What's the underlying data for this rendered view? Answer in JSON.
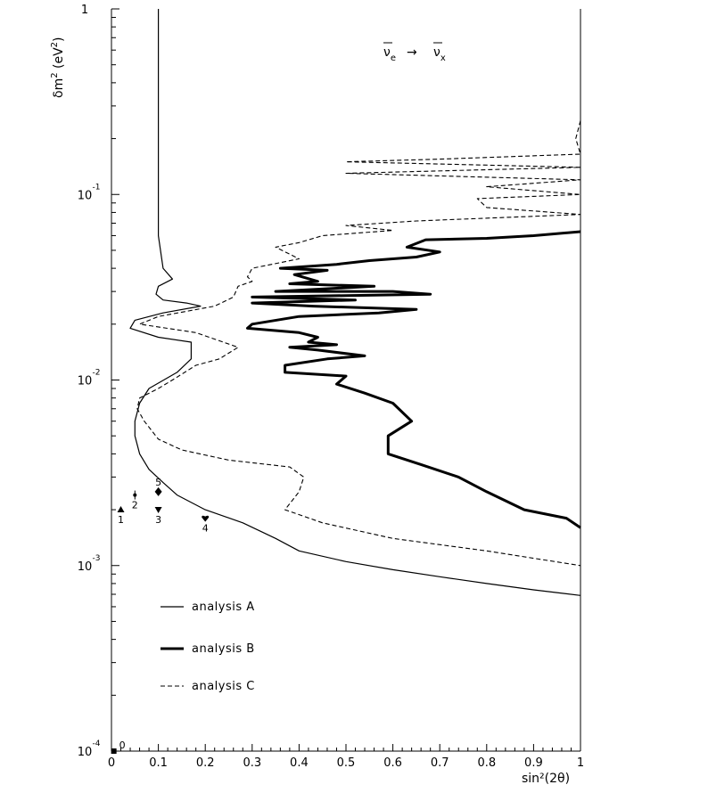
{
  "chart_data": {
    "type": "line",
    "title_annotation": {
      "symbol_left": "ν",
      "subscript_left": "e",
      "arrow": "→",
      "symbol_right": "ν",
      "subscript_right": "x"
    },
    "xlabel": "sin²(2θ)",
    "ylabel_parts": {
      "prefix": "δm",
      "sup1": "2",
      "unit_open": " (eV",
      "sup2": "2",
      "unit_close": ")"
    },
    "xlim": [
      0,
      1
    ],
    "ylim": [
      0.0001,
      1
    ],
    "yscale": "log",
    "grid": false,
    "x_ticks": [
      "0",
      "0.1",
      "0.2",
      "0.3",
      "0.4",
      "0.5",
      "0.6",
      "0.7",
      "0.8",
      "0.9",
      "1"
    ],
    "y_ticks": [
      {
        "base": "10",
        "exp": "-4",
        "value": 0.0001
      },
      {
        "base": "10",
        "exp": "-3",
        "value": 0.001
      },
      {
        "base": "10",
        "exp": "-2",
        "value": 0.01
      },
      {
        "base": "10",
        "exp": "-1",
        "value": 0.1
      },
      {
        "base": "1",
        "exp": "",
        "value": 1
      }
    ],
    "legend": {
      "placement": "lower-left",
      "entries": [
        "analysis A",
        "analysis B",
        "analysis C"
      ]
    },
    "series": [
      {
        "name": "analysis A",
        "style": "thin-solid",
        "points": [
          [
            0.1,
            1.0
          ],
          [
            0.1,
            0.5
          ],
          [
            0.1,
            0.2
          ],
          [
            0.1,
            0.1
          ],
          [
            0.1,
            0.06
          ],
          [
            0.11,
            0.04
          ],
          [
            0.13,
            0.035
          ],
          [
            0.1,
            0.032
          ],
          [
            0.095,
            0.029
          ],
          [
            0.11,
            0.027
          ],
          [
            0.16,
            0.026
          ],
          [
            0.19,
            0.025
          ],
          [
            0.11,
            0.023
          ],
          [
            0.05,
            0.021
          ],
          [
            0.04,
            0.019
          ],
          [
            0.1,
            0.017
          ],
          [
            0.17,
            0.016
          ],
          [
            0.17,
            0.013
          ],
          [
            0.14,
            0.011
          ],
          [
            0.08,
            0.009
          ],
          [
            0.06,
            0.0075
          ],
          [
            0.05,
            0.006
          ],
          [
            0.05,
            0.005
          ],
          [
            0.06,
            0.004
          ],
          [
            0.08,
            0.0033
          ],
          [
            0.11,
            0.0028
          ],
          [
            0.14,
            0.0024
          ],
          [
            0.2,
            0.002
          ],
          [
            0.28,
            0.0017
          ],
          [
            0.35,
            0.0014
          ],
          [
            0.4,
            0.0012
          ],
          [
            0.5,
            0.00105
          ],
          [
            0.6,
            0.00095
          ],
          [
            0.7,
            0.00087
          ],
          [
            0.8,
            0.0008
          ],
          [
            0.9,
            0.00074
          ],
          [
            1.0,
            0.00069
          ]
        ]
      },
      {
        "name": "analysis B",
        "style": "thick-solid",
        "points": [
          [
            1.0,
            0.063
          ],
          [
            0.9,
            0.06
          ],
          [
            0.8,
            0.058
          ],
          [
            0.67,
            0.057
          ],
          [
            0.63,
            0.052
          ],
          [
            0.7,
            0.049
          ],
          [
            0.65,
            0.046
          ],
          [
            0.55,
            0.044
          ],
          [
            0.48,
            0.042
          ],
          [
            0.36,
            0.04
          ],
          [
            0.46,
            0.039
          ],
          [
            0.39,
            0.037
          ],
          [
            0.44,
            0.034
          ],
          [
            0.38,
            0.033
          ],
          [
            0.56,
            0.032
          ],
          [
            0.35,
            0.03
          ],
          [
            0.6,
            0.03
          ],
          [
            0.68,
            0.029
          ],
          [
            0.3,
            0.028
          ],
          [
            0.52,
            0.027
          ],
          [
            0.3,
            0.026
          ],
          [
            0.43,
            0.025
          ],
          [
            0.65,
            0.024
          ],
          [
            0.57,
            0.023
          ],
          [
            0.4,
            0.022
          ],
          [
            0.3,
            0.02
          ],
          [
            0.29,
            0.019
          ],
          [
            0.4,
            0.018
          ],
          [
            0.44,
            0.017
          ],
          [
            0.42,
            0.016
          ],
          [
            0.48,
            0.0155
          ],
          [
            0.38,
            0.015
          ],
          [
            0.44,
            0.0145
          ],
          [
            0.54,
            0.0135
          ],
          [
            0.46,
            0.013
          ],
          [
            0.37,
            0.012
          ],
          [
            0.37,
            0.011
          ],
          [
            0.5,
            0.0105
          ],
          [
            0.48,
            0.0095
          ],
          [
            0.54,
            0.0085
          ],
          [
            0.6,
            0.0075
          ],
          [
            0.64,
            0.006
          ],
          [
            0.59,
            0.005
          ],
          [
            0.59,
            0.004
          ],
          [
            0.66,
            0.0035
          ],
          [
            0.74,
            0.003
          ],
          [
            0.8,
            0.0025
          ],
          [
            0.88,
            0.002
          ],
          [
            0.97,
            0.0018
          ],
          [
            1.0,
            0.0016
          ]
        ]
      },
      {
        "name": "analysis C",
        "style": "dashed",
        "points": [
          [
            1.0,
            0.25
          ],
          [
            0.99,
            0.2
          ],
          [
            1.0,
            0.165
          ],
          [
            0.7,
            0.155
          ],
          [
            0.5,
            0.15
          ],
          [
            1.0,
            0.14
          ],
          [
            0.5,
            0.13
          ],
          [
            1.0,
            0.12
          ],
          [
            0.8,
            0.11
          ],
          [
            1.0,
            0.1
          ],
          [
            0.78,
            0.095
          ],
          [
            0.8,
            0.085
          ],
          [
            1.0,
            0.078
          ],
          [
            0.65,
            0.072
          ],
          [
            0.5,
            0.068
          ],
          [
            0.6,
            0.064
          ],
          [
            0.45,
            0.06
          ],
          [
            0.4,
            0.055
          ],
          [
            0.35,
            0.052
          ],
          [
            0.4,
            0.045
          ],
          [
            0.3,
            0.04
          ],
          [
            0.29,
            0.036
          ],
          [
            0.3,
            0.034
          ],
          [
            0.27,
            0.032
          ],
          [
            0.26,
            0.028
          ],
          [
            0.22,
            0.025
          ],
          [
            0.1,
            0.022
          ],
          [
            0.06,
            0.02
          ],
          [
            0.18,
            0.018
          ],
          [
            0.27,
            0.015
          ],
          [
            0.23,
            0.013
          ],
          [
            0.18,
            0.012
          ],
          [
            0.13,
            0.01
          ],
          [
            0.1,
            0.009
          ],
          [
            0.06,
            0.008
          ],
          [
            0.055,
            0.007
          ],
          [
            0.07,
            0.006
          ],
          [
            0.1,
            0.0048
          ],
          [
            0.15,
            0.0042
          ],
          [
            0.25,
            0.0037
          ],
          [
            0.38,
            0.0034
          ],
          [
            0.41,
            0.003
          ],
          [
            0.4,
            0.0025
          ],
          [
            0.37,
            0.002
          ],
          [
            0.45,
            0.0017
          ],
          [
            0.6,
            0.0014
          ],
          [
            0.8,
            0.0012
          ],
          [
            1.0,
            0.001
          ]
        ]
      }
    ],
    "markers": [
      {
        "label": "1",
        "x": 0.02,
        "y": 0.002,
        "shape": "triangle-up",
        "label_pos": "below"
      },
      {
        "label": "2",
        "x": 0.05,
        "y": 0.0024,
        "shape": "errorbar",
        "label_pos": "below"
      },
      {
        "label": "3",
        "x": 0.1,
        "y": 0.002,
        "shape": "triangle-down",
        "label_pos": "below"
      },
      {
        "label": "4",
        "x": 0.2,
        "y": 0.0018,
        "shape": "heart",
        "label_pos": "below"
      },
      {
        "label": "5",
        "x": 0.1,
        "y": 0.0025,
        "shape": "diamond",
        "label_pos": "above"
      },
      {
        "label": "0",
        "x": 0.005,
        "y": 0.0001,
        "shape": "square",
        "label_pos": "right"
      }
    ]
  }
}
